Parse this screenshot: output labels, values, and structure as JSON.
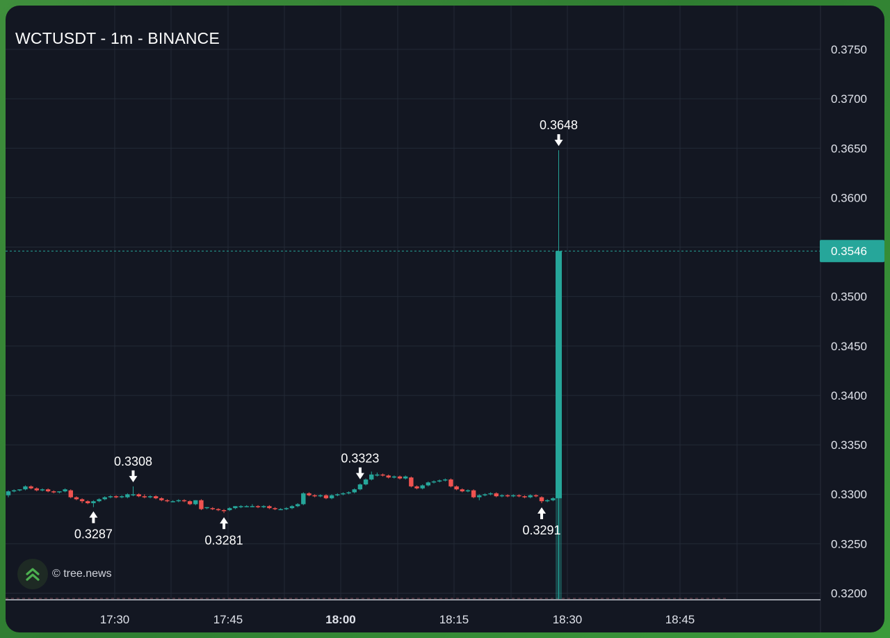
{
  "title": "WCTUSDT - 1m - BINANCE",
  "watermark": {
    "text": "© tree.news",
    "icon": "double-chevron-up-icon"
  },
  "colors": {
    "up": "#26a69a",
    "down": "#ef5350",
    "grid": "#232a36",
    "text": "#d1d4dc",
    "axis": "#e0e3eb"
  },
  "chart_data": {
    "type": "candlestick",
    "title": "WCTUSDT - 1m - BINANCE",
    "interval": "1m",
    "exchange": "BINANCE",
    "y_axis": {
      "position": "right",
      "ylim": [
        0.319,
        0.3785
      ],
      "ticks": [
        "0.3750",
        "0.3700",
        "0.3650",
        "0.3600",
        "0.3500",
        "0.3450",
        "0.3400",
        "0.3350",
        "0.3300",
        "0.3250",
        "0.3200"
      ]
    },
    "x_axis": {
      "ticks": [
        {
          "label": "17:30",
          "bold": false
        },
        {
          "label": "17:45",
          "bold": false
        },
        {
          "label": "18:00",
          "bold": true
        },
        {
          "label": "18:15",
          "bold": false
        },
        {
          "label": "18:30",
          "bold": false
        },
        {
          "label": "18:45",
          "bold": false
        }
      ]
    },
    "last_price": "0.3546",
    "grid": true,
    "annotations": [
      {
        "type": "high",
        "label": "0.3308",
        "candle": 22
      },
      {
        "type": "low",
        "label": "0.3287",
        "candle": 15
      },
      {
        "type": "low",
        "label": "0.3281",
        "candle": 38
      },
      {
        "type": "high",
        "label": "0.3323",
        "candle": 62
      },
      {
        "type": "low",
        "label": "0.3291",
        "candle": 94
      },
      {
        "type": "high",
        "label": "0.3648",
        "candle": 97
      }
    ],
    "candles": [
      [
        0.3299,
        0.3304,
        0.3297,
        0.3303
      ],
      [
        0.3303,
        0.3305,
        0.3302,
        0.3304
      ],
      [
        0.3304,
        0.3305,
        0.3303,
        0.3305
      ],
      [
        0.3305,
        0.3309,
        0.3304,
        0.3308
      ],
      [
        0.3308,
        0.3309,
        0.3305,
        0.3306
      ],
      [
        0.3306,
        0.3307,
        0.3303,
        0.3304
      ],
      [
        0.3304,
        0.3306,
        0.3303,
        0.3305
      ],
      [
        0.3305,
        0.3306,
        0.3302,
        0.3303
      ],
      [
        0.3303,
        0.3304,
        0.3301,
        0.3302
      ],
      [
        0.3302,
        0.3303,
        0.3301,
        0.3303
      ],
      [
        0.3303,
        0.3306,
        0.3302,
        0.3305
      ],
      [
        0.3304,
        0.3305,
        0.3296,
        0.3297
      ],
      [
        0.3297,
        0.3298,
        0.3294,
        0.3295
      ],
      [
        0.3295,
        0.3296,
        0.3291,
        0.3293
      ],
      [
        0.3293,
        0.3294,
        0.329,
        0.3291
      ],
      [
        0.3291,
        0.3294,
        0.3287,
        0.3293
      ],
      [
        0.3293,
        0.3296,
        0.3292,
        0.3295
      ],
      [
        0.3295,
        0.3298,
        0.3294,
        0.3297
      ],
      [
        0.3297,
        0.3299,
        0.3296,
        0.3298
      ],
      [
        0.3298,
        0.3299,
        0.3296,
        0.3297
      ],
      [
        0.3297,
        0.3299,
        0.3296,
        0.3298
      ],
      [
        0.3297,
        0.3301,
        0.3296,
        0.33
      ],
      [
        0.3299,
        0.3308,
        0.3298,
        0.33
      ],
      [
        0.33,
        0.3301,
        0.3297,
        0.3298
      ],
      [
        0.3298,
        0.33,
        0.3296,
        0.3297
      ],
      [
        0.3297,
        0.3299,
        0.3296,
        0.3298
      ],
      [
        0.3298,
        0.3299,
        0.3295,
        0.3296
      ],
      [
        0.3296,
        0.3297,
        0.3293,
        0.3294
      ],
      [
        0.3294,
        0.3295,
        0.3292,
        0.3293
      ],
      [
        0.3293,
        0.3294,
        0.3292,
        0.3293
      ],
      [
        0.3293,
        0.3295,
        0.3292,
        0.3294
      ],
      [
        0.3294,
        0.3295,
        0.3292,
        0.3293
      ],
      [
        0.3293,
        0.3294,
        0.3289,
        0.329
      ],
      [
        0.329,
        0.3294,
        0.3289,
        0.3294
      ],
      [
        0.3294,
        0.3295,
        0.3284,
        0.3285
      ],
      [
        0.3286,
        0.3287,
        0.3285,
        0.3287
      ],
      [
        0.3286,
        0.3287,
        0.3284,
        0.3285
      ],
      [
        0.3285,
        0.3286,
        0.3283,
        0.3284
      ],
      [
        0.3284,
        0.3285,
        0.3281,
        0.3283
      ],
      [
        0.3284,
        0.3287,
        0.3283,
        0.3286
      ],
      [
        0.3286,
        0.3288,
        0.3285,
        0.3288
      ],
      [
        0.3288,
        0.3289,
        0.3286,
        0.3288
      ],
      [
        0.3288,
        0.3289,
        0.3287,
        0.3288
      ],
      [
        0.3288,
        0.329,
        0.3287,
        0.3288
      ],
      [
        0.3288,
        0.3289,
        0.3286,
        0.3287
      ],
      [
        0.3287,
        0.3289,
        0.3286,
        0.3288
      ],
      [
        0.3288,
        0.3289,
        0.3285,
        0.3286
      ],
      [
        0.3286,
        0.3287,
        0.3284,
        0.3285
      ],
      [
        0.3285,
        0.3286,
        0.3284,
        0.3285
      ],
      [
        0.3285,
        0.3287,
        0.3284,
        0.3286
      ],
      [
        0.3286,
        0.3289,
        0.3285,
        0.3288
      ],
      [
        0.3288,
        0.3291,
        0.3287,
        0.329
      ],
      [
        0.329,
        0.3302,
        0.3289,
        0.3301
      ],
      [
        0.3301,
        0.3302,
        0.3298,
        0.3299
      ],
      [
        0.3299,
        0.33,
        0.3297,
        0.3298
      ],
      [
        0.3298,
        0.33,
        0.3297,
        0.3299
      ],
      [
        0.3299,
        0.33,
        0.3295,
        0.3296
      ],
      [
        0.3296,
        0.33,
        0.3295,
        0.3299
      ],
      [
        0.3299,
        0.3301,
        0.3298,
        0.33
      ],
      [
        0.33,
        0.3302,
        0.3299,
        0.3301
      ],
      [
        0.3301,
        0.3303,
        0.33,
        0.3302
      ],
      [
        0.3302,
        0.3306,
        0.3301,
        0.3305
      ],
      [
        0.3305,
        0.3311,
        0.3304,
        0.331
      ],
      [
        0.331,
        0.3316,
        0.3309,
        0.3315
      ],
      [
        0.3315,
        0.3323,
        0.3314,
        0.332
      ],
      [
        0.332,
        0.3322,
        0.3318,
        0.332
      ],
      [
        0.332,
        0.3321,
        0.3318,
        0.3319
      ],
      [
        0.3319,
        0.332,
        0.3316,
        0.3317
      ],
      [
        0.3317,
        0.3319,
        0.3316,
        0.3318
      ],
      [
        0.3318,
        0.3319,
        0.3315,
        0.3316
      ],
      [
        0.3316,
        0.3319,
        0.3315,
        0.3318
      ],
      [
        0.3317,
        0.3318,
        0.3307,
        0.3308
      ],
      [
        0.3308,
        0.3309,
        0.3305,
        0.3306
      ],
      [
        0.3306,
        0.331,
        0.3305,
        0.3309
      ],
      [
        0.3309,
        0.3313,
        0.3308,
        0.3312
      ],
      [
        0.3312,
        0.3314,
        0.3311,
        0.3313
      ],
      [
        0.3313,
        0.3315,
        0.3312,
        0.3314
      ],
      [
        0.3314,
        0.3316,
        0.3313,
        0.3315
      ],
      [
        0.3315,
        0.3316,
        0.3307,
        0.3308
      ],
      [
        0.3308,
        0.3309,
        0.3304,
        0.3305
      ],
      [
        0.3305,
        0.3306,
        0.3302,
        0.3303
      ],
      [
        0.3303,
        0.3305,
        0.3302,
        0.3304
      ],
      [
        0.3304,
        0.3305,
        0.3296,
        0.3297
      ],
      [
        0.3297,
        0.33,
        0.3294,
        0.3299
      ],
      [
        0.3299,
        0.3301,
        0.3298,
        0.33
      ],
      [
        0.33,
        0.3302,
        0.3299,
        0.3301
      ],
      [
        0.3301,
        0.3302,
        0.3297,
        0.3298
      ],
      [
        0.3298,
        0.33,
        0.3297,
        0.3299
      ],
      [
        0.3299,
        0.33,
        0.3297,
        0.3298
      ],
      [
        0.3298,
        0.33,
        0.3297,
        0.3299
      ],
      [
        0.3299,
        0.33,
        0.3297,
        0.3298
      ],
      [
        0.3298,
        0.3299,
        0.3296,
        0.3297
      ],
      [
        0.3297,
        0.33,
        0.3296,
        0.3299
      ],
      [
        0.3299,
        0.33,
        0.3297,
        0.3298
      ],
      [
        0.3297,
        0.3298,
        0.3291,
        0.3293
      ],
      [
        0.3293,
        0.3295,
        0.3292,
        0.3294
      ],
      [
        0.3294,
        0.3297,
        0.3293,
        0.3296
      ],
      [
        0.3296,
        0.3648,
        0.3193,
        0.3546
      ]
    ]
  }
}
